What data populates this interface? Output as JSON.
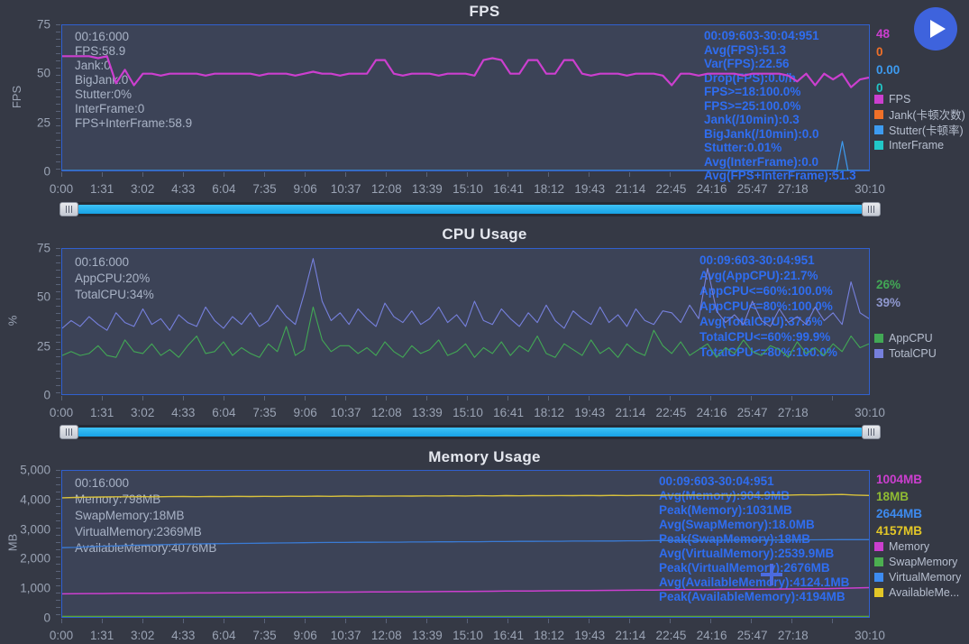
{
  "toolbar": {
    "play_icon": "play"
  },
  "cursor": {
    "crosshair_icon": "crosshair"
  },
  "charts": [
    {
      "title": "FPS",
      "y_axis_label": "FPS",
      "ylim": [
        0,
        75
      ],
      "y_ticks": [
        {
          "label": "75",
          "v": 75
        },
        {
          "label": "50",
          "v": 50
        },
        {
          "label": "25",
          "v": 25
        },
        {
          "label": "0",
          "v": 0
        }
      ],
      "x_max": 1810,
      "x_ticks": [
        {
          "label": "0:00",
          "t": 0
        },
        {
          "label": "1:31",
          "t": 91
        },
        {
          "label": "3:02",
          "t": 182
        },
        {
          "label": "4:33",
          "t": 273
        },
        {
          "label": "6:04",
          "t": 364
        },
        {
          "label": "7:35",
          "t": 455
        },
        {
          "label": "9:06",
          "t": 546
        },
        {
          "label": "10:37",
          "t": 637
        },
        {
          "label": "12:08",
          "t": 728
        },
        {
          "label": "13:39",
          "t": 819
        },
        {
          "label": "15:10",
          "t": 910
        },
        {
          "label": "16:41",
          "t": 1001
        },
        {
          "label": "18:12",
          "t": 1092
        },
        {
          "label": "19:43",
          "t": 1183
        },
        {
          "label": "21:14",
          "t": 1274
        },
        {
          "label": "22:45",
          "t": 1365
        },
        {
          "label": "24:16",
          "t": 1456
        },
        {
          "label": "25:47",
          "t": 1547
        },
        {
          "label": "27:18",
          "t": 1638
        },
        {
          "label": "30:10",
          "t": 1810
        }
      ],
      "left_stats": [
        "00:16:000",
        "FPS:58.9",
        "Jank:0",
        "BigJank:0",
        "Stutter:0%",
        "InterFrame:0",
        "FPS+InterFrame:58.9"
      ],
      "right_stats": [
        "00:09:603-30:04:951",
        "Avg(FPS):51.3",
        "Var(FPS):22.56",
        "Drop(FPS):0.0/h",
        "FPS>=18:100.0%",
        "FPS>=25:100.0%",
        "Jank(/10min):0.3",
        "BigJank(/10min):0.0",
        "Stutter:0.01%",
        "Avg(InterFrame):0.0",
        "Avg(FPS+InterFrame):51.3"
      ],
      "current_values": [
        {
          "text": "48",
          "color": "#cc3fcf"
        },
        {
          "text": "0",
          "color": "#f07028"
        },
        {
          "text": "0.00",
          "color": "#3d9bf0"
        },
        {
          "text": "0",
          "color": "#21c7c7"
        }
      ],
      "legend": [
        {
          "label": "FPS",
          "color": "#cc3fcf"
        },
        {
          "label": "Jank(卡顿次数)",
          "color": "#f07028"
        },
        {
          "label": "Stutter(卡顿率)",
          "color": "#3d9bf0"
        },
        {
          "label": "InterFrame",
          "color": "#21c7c7"
        }
      ],
      "series": [
        {
          "name": "Jank",
          "color": "#f07028",
          "width": 1.1,
          "values": [
            0,
            0
          ]
        },
        {
          "name": "InterFrame",
          "color": "#21c7c7",
          "width": 1.1,
          "values": [
            0,
            0
          ]
        },
        {
          "name": "Stutter",
          "color": "#3d9bf0",
          "width": 1.2,
          "x": [
            0,
            0.96,
            0.967,
            0.974,
            1
          ],
          "values": [
            0,
            0,
            15,
            0,
            0
          ]
        },
        {
          "name": "FPS",
          "color": "#cc3fcf",
          "width": 2.2,
          "values": [
            59,
            59,
            59,
            59,
            58,
            59,
            45,
            52,
            44,
            50,
            50,
            49,
            50,
            50,
            50,
            50,
            49,
            50,
            50,
            50,
            50,
            50,
            49,
            50,
            50,
            50,
            49,
            50,
            51,
            50,
            50,
            49,
            50,
            50,
            50,
            57,
            57,
            50,
            49,
            50,
            50,
            50,
            49,
            50,
            50,
            50,
            49,
            57,
            58,
            57,
            50,
            50,
            57,
            57,
            50,
            50,
            57,
            57,
            50,
            49,
            50,
            50,
            50,
            49,
            50,
            50,
            50,
            49,
            44,
            50,
            50,
            49,
            50,
            50,
            50,
            50,
            49,
            50,
            50,
            50,
            50,
            49,
            46,
            50,
            44,
            50,
            47,
            50,
            43,
            47,
            48
          ]
        }
      ]
    },
    {
      "title": "CPU Usage",
      "y_axis_label": "%",
      "ylim": [
        0,
        75
      ],
      "y_ticks": [
        {
          "label": "75",
          "v": 75
        },
        {
          "label": "50",
          "v": 50
        },
        {
          "label": "25",
          "v": 25
        },
        {
          "label": "0",
          "v": 0
        }
      ],
      "x_max": 1810,
      "x_ticks": [
        {
          "label": "0:00",
          "t": 0
        },
        {
          "label": "1:31",
          "t": 91
        },
        {
          "label": "3:02",
          "t": 182
        },
        {
          "label": "4:33",
          "t": 273
        },
        {
          "label": "6:04",
          "t": 364
        },
        {
          "label": "7:35",
          "t": 455
        },
        {
          "label": "9:06",
          "t": 546
        },
        {
          "label": "10:37",
          "t": 637
        },
        {
          "label": "12:08",
          "t": 728
        },
        {
          "label": "13:39",
          "t": 819
        },
        {
          "label": "15:10",
          "t": 910
        },
        {
          "label": "16:41",
          "t": 1001
        },
        {
          "label": "18:12",
          "t": 1092
        },
        {
          "label": "19:43",
          "t": 1183
        },
        {
          "label": "21:14",
          "t": 1274
        },
        {
          "label": "22:45",
          "t": 1365
        },
        {
          "label": "24:16",
          "t": 1456
        },
        {
          "label": "25:47",
          "t": 1547
        },
        {
          "label": "27:18",
          "t": 1638
        },
        {
          "label": "30:10",
          "t": 1810
        }
      ],
      "left_stats": [
        "00:16:000",
        "AppCPU:20%",
        "TotalCPU:34%"
      ],
      "right_stats": [
        "00:09:603-30:04:951",
        "Avg(AppCPU):21.7%",
        "AppCPU<=60%:100.0%",
        "AppCPU<=80%:100.0%",
        "Avg(TotalCPU):37.6%",
        "TotalCPU<=60%:99.9%",
        "TotalCPU<=80%:100.0%"
      ],
      "current_values": [
        {
          "text": "26%",
          "color": "#42a855"
        },
        {
          "text": "39%",
          "color": "#8f98cf"
        }
      ],
      "legend": [
        {
          "label": "AppCPU",
          "color": "#42a855"
        },
        {
          "label": "TotalCPU",
          "color": "#7680dd"
        }
      ],
      "series": [
        {
          "name": "TotalCPU",
          "color": "#7680dd",
          "width": 1.1,
          "values": [
            34,
            38,
            35,
            40,
            36,
            33,
            42,
            37,
            35,
            44,
            36,
            39,
            33,
            41,
            37,
            35,
            45,
            38,
            34,
            40,
            36,
            42,
            35,
            38,
            46,
            40,
            36,
            52,
            70,
            48,
            38,
            42,
            36,
            44,
            39,
            35,
            47,
            40,
            37,
            43,
            36,
            39,
            45,
            37,
            41,
            35,
            48,
            38,
            36,
            44,
            39,
            35,
            42,
            37,
            46,
            38,
            34,
            43,
            39,
            36,
            45,
            37,
            41,
            35,
            44,
            38,
            36,
            43,
            42,
            37,
            46,
            39,
            65,
            43,
            37,
            41,
            36,
            48,
            38,
            35,
            44,
            37,
            40,
            36,
            45,
            38,
            42,
            36,
            58,
            42,
            39
          ]
        },
        {
          "name": "AppCPU",
          "color": "#42a855",
          "width": 1.1,
          "values": [
            20,
            22,
            20,
            21,
            25,
            20,
            19,
            28,
            22,
            21,
            26,
            20,
            23,
            19,
            25,
            30,
            21,
            22,
            27,
            20,
            24,
            21,
            19,
            26,
            22,
            35,
            20,
            23,
            45,
            28,
            22,
            25,
            25,
            21,
            24,
            20,
            27,
            22,
            19,
            25,
            21,
            23,
            28,
            20,
            22,
            26,
            19,
            24,
            21,
            27,
            20,
            25,
            22,
            30,
            21,
            19,
            26,
            23,
            20,
            28,
            21,
            24,
            19,
            26,
            22,
            20,
            33,
            25,
            21,
            27,
            20,
            23,
            26,
            19,
            24,
            21,
            28,
            22,
            20,
            25,
            23,
            19,
            27,
            21,
            24,
            20,
            26,
            22,
            30,
            24,
            26
          ]
        }
      ]
    },
    {
      "title": "Memory Usage",
      "y_axis_label": "MB",
      "ylim": [
        0,
        5000
      ],
      "y_ticks": [
        {
          "label": "5,000",
          "v": 5000
        },
        {
          "label": "4,000",
          "v": 4000
        },
        {
          "label": "3,000",
          "v": 3000
        },
        {
          "label": "2,000",
          "v": 2000
        },
        {
          "label": "1,000",
          "v": 1000
        },
        {
          "label": "0",
          "v": 0
        }
      ],
      "x_max": 1810,
      "x_ticks": [
        {
          "label": "0:00",
          "t": 0
        },
        {
          "label": "1:31",
          "t": 91
        },
        {
          "label": "3:02",
          "t": 182
        },
        {
          "label": "4:33",
          "t": 273
        },
        {
          "label": "6:04",
          "t": 364
        },
        {
          "label": "7:35",
          "t": 455
        },
        {
          "label": "9:06",
          "t": 546
        },
        {
          "label": "10:37",
          "t": 637
        },
        {
          "label": "12:08",
          "t": 728
        },
        {
          "label": "13:39",
          "t": 819
        },
        {
          "label": "15:10",
          "t": 910
        },
        {
          "label": "16:41",
          "t": 1001
        },
        {
          "label": "18:12",
          "t": 1092
        },
        {
          "label": "19:43",
          "t": 1183
        },
        {
          "label": "21:14",
          "t": 1274
        },
        {
          "label": "22:45",
          "t": 1365
        },
        {
          "label": "24:16",
          "t": 1456
        },
        {
          "label": "25:47",
          "t": 1547
        },
        {
          "label": "27:18",
          "t": 1638
        },
        {
          "label": "30:10",
          "t": 1810
        }
      ],
      "left_stats": [
        "00:16:000",
        "Memory:798MB",
        "SwapMemory:18MB",
        "VirtualMemory:2369MB",
        "AvailableMemory:4076MB"
      ],
      "right_stats": [
        "00:09:603-30:04:951",
        "Avg(Memory):904.9MB",
        "Peak(Memory):1031MB",
        "Avg(SwapMemory):18.0MB",
        "Peak(SwapMemory):18MB",
        "Avg(VirtualMemory):2539.9MB",
        "Peak(VirtualMemory):2676MB",
        "Avg(AvailableMemory):4124.1MB",
        "Peak(AvailableMemory):4194MB"
      ],
      "current_values": [
        {
          "text": "1004MB",
          "color": "#cc3fcf"
        },
        {
          "text": "18MB",
          "color": "#8fba33"
        },
        {
          "text": "2644MB",
          "color": "#3d8bf0"
        },
        {
          "text": "4157MB",
          "color": "#e3c727"
        }
      ],
      "legend": [
        {
          "label": "Memory",
          "color": "#cc3fcf"
        },
        {
          "label": "SwapMemory",
          "color": "#4caf50"
        },
        {
          "label": "VirtualMemory",
          "color": "#3d8bf0"
        },
        {
          "label": "AvailableMe...",
          "color": "#e3c727"
        }
      ],
      "series": [
        {
          "name": "VirtualMemory",
          "color": "#3a7bd5",
          "width": 1.3,
          "values": [
            2369,
            2380,
            2400,
            2420,
            2430,
            2450,
            2460,
            2470,
            2480,
            2490,
            2500,
            2505,
            2510,
            2515,
            2520,
            2525,
            2530,
            2535,
            2540,
            2545,
            2550,
            2550,
            2555,
            2555,
            2560,
            2560,
            2565,
            2565,
            2570,
            2570,
            2575,
            2575,
            2580,
            2580,
            2585,
            2585,
            2590,
            2590,
            2595,
            2595,
            2600,
            2600,
            2605,
            2605,
            2610,
            2610,
            2615,
            2615,
            2620,
            2620,
            2625,
            2628,
            2630,
            2632,
            2635,
            2638,
            2640,
            2642,
            2644,
            2644,
            2644
          ]
        },
        {
          "name": "SwapMemory",
          "color": "#5aa532",
          "width": 1.3,
          "values": [
            18,
            18
          ]
        },
        {
          "name": "AvailableMemory",
          "color": "#d9c23c",
          "width": 1.4,
          "values": [
            4076,
            4090,
            4100,
            4105,
            4110,
            4112,
            4115,
            4110,
            4118,
            4120,
            4115,
            4122,
            4118,
            4125,
            4120,
            4128,
            4122,
            4130,
            4125,
            4132,
            4128,
            4135,
            4130,
            4138,
            4132,
            4140,
            4135,
            4142,
            4138,
            4145,
            4140,
            4148,
            4142,
            4150,
            4145,
            4152,
            4148,
            4155,
            4150,
            4158,
            4152,
            4160,
            4155,
            4162,
            4158,
            4165,
            4160,
            4168,
            4162,
            4170,
            4165,
            4172,
            4168,
            4175,
            4170,
            4180,
            4175,
            4185,
            4190,
            4170,
            4157
          ]
        },
        {
          "name": "Memory",
          "color": "#cc3fcf",
          "width": 1.5,
          "values": [
            790,
            795,
            798,
            800,
            805,
            808,
            810,
            812,
            815,
            818,
            820,
            822,
            825,
            828,
            830,
            832,
            835,
            838,
            840,
            845,
            848,
            850,
            852,
            855,
            858,
            860,
            862,
            865,
            868,
            870,
            875,
            878,
            880,
            885,
            888,
            890,
            895,
            898,
            900,
            905,
            908,
            910,
            915,
            918,
            920,
            925,
            928,
            930,
            935,
            940,
            945,
            948,
            950,
            955,
            958,
            960,
            965,
            970,
            980,
            990,
            1004
          ]
        }
      ]
    }
  ]
}
